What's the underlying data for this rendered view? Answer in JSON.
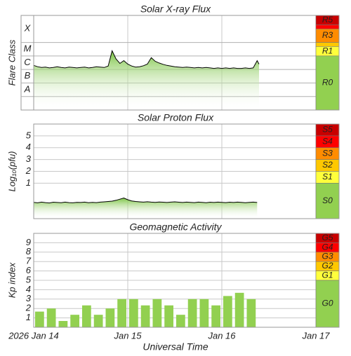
{
  "chart_data": [
    {
      "type": "line",
      "title": "Solar X-ray Flux",
      "y_label": "Flare Class",
      "log_scale": true,
      "color": "#000000",
      "fill": "#7cc444",
      "ylim": [
        1e-09,
        0.01
      ],
      "yticks": [
        {
          "value": 1e-08,
          "label": "A"
        },
        {
          "value": 1e-07,
          "label": "B"
        },
        {
          "value": 1e-06,
          "label": "C"
        },
        {
          "value": 1e-05,
          "label": "M"
        },
        {
          "value": 0.0001,
          "label": "X"
        }
      ],
      "xlim": [
        0,
        72
      ],
      "xticks": [
        0,
        24,
        48,
        72
      ],
      "grid": true,
      "x": [
        0,
        1,
        2,
        3,
        4,
        5,
        6,
        7,
        8,
        9,
        10,
        11,
        12,
        13,
        14,
        15,
        16,
        17,
        18,
        19,
        20,
        21,
        22,
        23,
        24,
        25,
        26,
        27,
        28,
        29,
        30,
        31,
        32,
        33,
        34,
        35,
        36,
        37,
        38,
        39,
        40,
        41,
        42,
        43,
        44,
        45,
        46,
        47,
        48,
        49,
        50,
        51,
        52,
        53,
        54,
        55,
        56,
        57,
        57.5
      ],
      "values": [
        2e-06,
        1.6e-06,
        1.4e-06,
        1.5e-06,
        1.3e-06,
        1.4e-06,
        1.6e-06,
        1.4e-06,
        1.3e-06,
        1.5e-06,
        1.4e-06,
        1.3e-06,
        1.4e-06,
        1.5e-06,
        1.3e-06,
        1.4e-06,
        1.6e-06,
        1.5e-06,
        1.4e-06,
        1.8e-06,
        2.4e-05,
        6e-06,
        2.8e-06,
        4.5e-06,
        2.5e-06,
        1.8e-06,
        1.5e-06,
        1.6e-06,
        1.9e-06,
        2.5e-06,
        7.5e-06,
        4e-06,
        3e-06,
        2.4e-06,
        2e-06,
        1.8e-06,
        1.6e-06,
        1.5e-06,
        1.4e-06,
        1.5e-06,
        1.4e-06,
        1.3e-06,
        1.4e-06,
        1.3e-06,
        1.4e-06,
        1.3e-06,
        1.2e-06,
        1.3e-06,
        1.2e-06,
        1.3e-06,
        1.2e-06,
        1.3e-06,
        1.2e-06,
        1.2e-06,
        1.3e-06,
        1.2e-06,
        1.3e-06,
        4.5e-06,
        2.5e-06
      ],
      "scale": [
        {
          "label": "R5",
          "from": 0.002,
          "color": "#c80000"
        },
        {
          "from": 0.001,
          "color": "#ff0000"
        },
        {
          "label": "R3",
          "from": 0.0001,
          "color": "#ff8c00"
        },
        {
          "from": 5e-05,
          "color": "#ffc800"
        },
        {
          "label": "R1",
          "from": 1e-05,
          "color": "#ffff3c"
        },
        {
          "label": "R0",
          "from": 1e-09,
          "color": "#92d050"
        }
      ]
    },
    {
      "type": "line",
      "title": "Solar Proton Flux",
      "y_label": "Log₁₀(pfu)",
      "color": "#000000",
      "fill": "#7cc444",
      "ylim": [
        -2,
        6
      ],
      "yticks": [
        1,
        2,
        3,
        4,
        5
      ],
      "xlim": [
        0,
        72
      ],
      "xticks": [
        0,
        24,
        48,
        72
      ],
      "grid": true,
      "x": [
        0,
        1,
        2,
        3,
        4,
        5,
        6,
        7,
        8,
        9,
        10,
        11,
        12,
        13,
        14,
        15,
        16,
        17,
        18,
        19,
        20,
        21,
        22,
        23,
        24,
        25,
        26,
        27,
        28,
        29,
        30,
        31,
        32,
        33,
        34,
        35,
        36,
        37,
        38,
        39,
        40,
        41,
        42,
        43,
        44,
        45,
        46,
        47,
        48,
        49,
        50,
        51,
        52,
        53,
        54,
        55,
        56,
        57
      ],
      "values": [
        -0.62,
        -0.66,
        -0.6,
        -0.64,
        -0.67,
        -0.61,
        -0.63,
        -0.65,
        -0.6,
        -0.64,
        -0.66,
        -0.62,
        -0.63,
        -0.6,
        -0.65,
        -0.62,
        -0.64,
        -0.6,
        -0.58,
        -0.55,
        -0.52,
        -0.45,
        -0.35,
        -0.25,
        -0.4,
        -0.5,
        -0.55,
        -0.58,
        -0.6,
        -0.57,
        -0.6,
        -0.62,
        -0.59,
        -0.61,
        -0.63,
        -0.6,
        -0.58,
        -0.61,
        -0.63,
        -0.6,
        -0.62,
        -0.64,
        -0.6,
        -0.62,
        -0.65,
        -0.61,
        -0.63,
        -0.6,
        -0.62,
        -0.64,
        -0.61,
        -0.63,
        -0.6,
        -0.62,
        -0.65,
        -0.62,
        -0.6,
        -0.63
      ],
      "scale": [
        {
          "label": "S5",
          "from": 5,
          "color": "#c80000"
        },
        {
          "label": "S4",
          "from": 4,
          "color": "#ff0000"
        },
        {
          "label": "S3",
          "from": 3,
          "color": "#ff8c00"
        },
        {
          "label": "S2",
          "from": 2,
          "color": "#ffc800"
        },
        {
          "label": "S1",
          "from": 1,
          "color": "#ffff3c"
        },
        {
          "label": "S0",
          "from": -2,
          "color": "#92d050"
        }
      ]
    },
    {
      "type": "bar",
      "title": "Geomagnetic Activity",
      "y_label": "Kp index",
      "x_label": "Universal Time",
      "color": "#92d050",
      "ylim": [
        0,
        10
      ],
      "yticks": [
        1,
        2,
        3,
        4,
        5,
        6,
        7,
        8,
        9
      ],
      "xlim": [
        0,
        72
      ],
      "bar_width": 3,
      "grid": true,
      "xticks": [
        {
          "value": 0,
          "label": "2026 Jan 14"
        },
        {
          "value": 24,
          "label": "Jan 15"
        },
        {
          "value": 48,
          "label": "Jan 16"
        },
        {
          "value": 72,
          "label": "Jan 17"
        }
      ],
      "x": [
        0,
        3,
        6,
        9,
        12,
        15,
        18,
        21,
        24,
        27,
        30,
        33,
        36,
        39,
        42,
        45,
        48,
        51,
        54
      ],
      "values": [
        1.67,
        2.0,
        0.67,
        1.33,
        2.33,
        1.33,
        2.0,
        3.0,
        3.0,
        2.33,
        3.0,
        2.33,
        1.33,
        3.0,
        3.0,
        2.33,
        3.33,
        3.67,
        3.0
      ],
      "scale": [
        {
          "label": "G5",
          "from": 9,
          "color": "#c80000"
        },
        {
          "label": "G4",
          "from": 8,
          "color": "#ff0000"
        },
        {
          "label": "G3",
          "from": 7,
          "color": "#ff8c00"
        },
        {
          "label": "G2",
          "from": 6,
          "color": "#ffc800"
        },
        {
          "label": "G1",
          "from": 5,
          "color": "#ffff3c"
        },
        {
          "label": "G0",
          "from": 0,
          "color": "#92d050"
        }
      ]
    }
  ]
}
